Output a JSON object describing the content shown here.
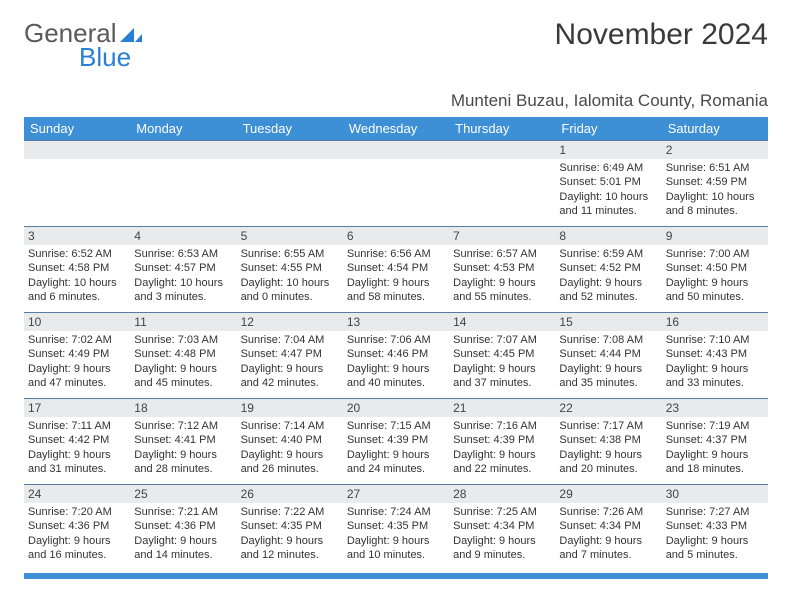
{
  "brand": {
    "part1": "General",
    "part2": "Blue"
  },
  "title": "November 2024",
  "location": "Munteni Buzau, Ialomita County, Romania",
  "colors": {
    "header_bg": "#3d8fd6",
    "header_text": "#ffffff",
    "daynum_bg": "#e9eaec",
    "border": "#5a7ca0",
    "body_text": "#333333",
    "brand_gray": "#5a5a5a",
    "brand_blue": "#2a7fd4"
  },
  "weekdays": [
    "Sunday",
    "Monday",
    "Tuesday",
    "Wednesday",
    "Thursday",
    "Friday",
    "Saturday"
  ],
  "weeks": [
    [
      {
        "n": "",
        "sunrise": "",
        "sunset": "",
        "daylight": ""
      },
      {
        "n": "",
        "sunrise": "",
        "sunset": "",
        "daylight": ""
      },
      {
        "n": "",
        "sunrise": "",
        "sunset": "",
        "daylight": ""
      },
      {
        "n": "",
        "sunrise": "",
        "sunset": "",
        "daylight": ""
      },
      {
        "n": "",
        "sunrise": "",
        "sunset": "",
        "daylight": ""
      },
      {
        "n": "1",
        "sunrise": "Sunrise: 6:49 AM",
        "sunset": "Sunset: 5:01 PM",
        "daylight": "Daylight: 10 hours and 11 minutes."
      },
      {
        "n": "2",
        "sunrise": "Sunrise: 6:51 AM",
        "sunset": "Sunset: 4:59 PM",
        "daylight": "Daylight: 10 hours and 8 minutes."
      }
    ],
    [
      {
        "n": "3",
        "sunrise": "Sunrise: 6:52 AM",
        "sunset": "Sunset: 4:58 PM",
        "daylight": "Daylight: 10 hours and 6 minutes."
      },
      {
        "n": "4",
        "sunrise": "Sunrise: 6:53 AM",
        "sunset": "Sunset: 4:57 PM",
        "daylight": "Daylight: 10 hours and 3 minutes."
      },
      {
        "n": "5",
        "sunrise": "Sunrise: 6:55 AM",
        "sunset": "Sunset: 4:55 PM",
        "daylight": "Daylight: 10 hours and 0 minutes."
      },
      {
        "n": "6",
        "sunrise": "Sunrise: 6:56 AM",
        "sunset": "Sunset: 4:54 PM",
        "daylight": "Daylight: 9 hours and 58 minutes."
      },
      {
        "n": "7",
        "sunrise": "Sunrise: 6:57 AM",
        "sunset": "Sunset: 4:53 PM",
        "daylight": "Daylight: 9 hours and 55 minutes."
      },
      {
        "n": "8",
        "sunrise": "Sunrise: 6:59 AM",
        "sunset": "Sunset: 4:52 PM",
        "daylight": "Daylight: 9 hours and 52 minutes."
      },
      {
        "n": "9",
        "sunrise": "Sunrise: 7:00 AM",
        "sunset": "Sunset: 4:50 PM",
        "daylight": "Daylight: 9 hours and 50 minutes."
      }
    ],
    [
      {
        "n": "10",
        "sunrise": "Sunrise: 7:02 AM",
        "sunset": "Sunset: 4:49 PM",
        "daylight": "Daylight: 9 hours and 47 minutes."
      },
      {
        "n": "11",
        "sunrise": "Sunrise: 7:03 AM",
        "sunset": "Sunset: 4:48 PM",
        "daylight": "Daylight: 9 hours and 45 minutes."
      },
      {
        "n": "12",
        "sunrise": "Sunrise: 7:04 AM",
        "sunset": "Sunset: 4:47 PM",
        "daylight": "Daylight: 9 hours and 42 minutes."
      },
      {
        "n": "13",
        "sunrise": "Sunrise: 7:06 AM",
        "sunset": "Sunset: 4:46 PM",
        "daylight": "Daylight: 9 hours and 40 minutes."
      },
      {
        "n": "14",
        "sunrise": "Sunrise: 7:07 AM",
        "sunset": "Sunset: 4:45 PM",
        "daylight": "Daylight: 9 hours and 37 minutes."
      },
      {
        "n": "15",
        "sunrise": "Sunrise: 7:08 AM",
        "sunset": "Sunset: 4:44 PM",
        "daylight": "Daylight: 9 hours and 35 minutes."
      },
      {
        "n": "16",
        "sunrise": "Sunrise: 7:10 AM",
        "sunset": "Sunset: 4:43 PM",
        "daylight": "Daylight: 9 hours and 33 minutes."
      }
    ],
    [
      {
        "n": "17",
        "sunrise": "Sunrise: 7:11 AM",
        "sunset": "Sunset: 4:42 PM",
        "daylight": "Daylight: 9 hours and 31 minutes."
      },
      {
        "n": "18",
        "sunrise": "Sunrise: 7:12 AM",
        "sunset": "Sunset: 4:41 PM",
        "daylight": "Daylight: 9 hours and 28 minutes."
      },
      {
        "n": "19",
        "sunrise": "Sunrise: 7:14 AM",
        "sunset": "Sunset: 4:40 PM",
        "daylight": "Daylight: 9 hours and 26 minutes."
      },
      {
        "n": "20",
        "sunrise": "Sunrise: 7:15 AM",
        "sunset": "Sunset: 4:39 PM",
        "daylight": "Daylight: 9 hours and 24 minutes."
      },
      {
        "n": "21",
        "sunrise": "Sunrise: 7:16 AM",
        "sunset": "Sunset: 4:39 PM",
        "daylight": "Daylight: 9 hours and 22 minutes."
      },
      {
        "n": "22",
        "sunrise": "Sunrise: 7:17 AM",
        "sunset": "Sunset: 4:38 PM",
        "daylight": "Daylight: 9 hours and 20 minutes."
      },
      {
        "n": "23",
        "sunrise": "Sunrise: 7:19 AM",
        "sunset": "Sunset: 4:37 PM",
        "daylight": "Daylight: 9 hours and 18 minutes."
      }
    ],
    [
      {
        "n": "24",
        "sunrise": "Sunrise: 7:20 AM",
        "sunset": "Sunset: 4:36 PM",
        "daylight": "Daylight: 9 hours and 16 minutes."
      },
      {
        "n": "25",
        "sunrise": "Sunrise: 7:21 AM",
        "sunset": "Sunset: 4:36 PM",
        "daylight": "Daylight: 9 hours and 14 minutes."
      },
      {
        "n": "26",
        "sunrise": "Sunrise: 7:22 AM",
        "sunset": "Sunset: 4:35 PM",
        "daylight": "Daylight: 9 hours and 12 minutes."
      },
      {
        "n": "27",
        "sunrise": "Sunrise: 7:24 AM",
        "sunset": "Sunset: 4:35 PM",
        "daylight": "Daylight: 9 hours and 10 minutes."
      },
      {
        "n": "28",
        "sunrise": "Sunrise: 7:25 AM",
        "sunset": "Sunset: 4:34 PM",
        "daylight": "Daylight: 9 hours and 9 minutes."
      },
      {
        "n": "29",
        "sunrise": "Sunrise: 7:26 AM",
        "sunset": "Sunset: 4:34 PM",
        "daylight": "Daylight: 9 hours and 7 minutes."
      },
      {
        "n": "30",
        "sunrise": "Sunrise: 7:27 AM",
        "sunset": "Sunset: 4:33 PM",
        "daylight": "Daylight: 9 hours and 5 minutes."
      }
    ]
  ]
}
